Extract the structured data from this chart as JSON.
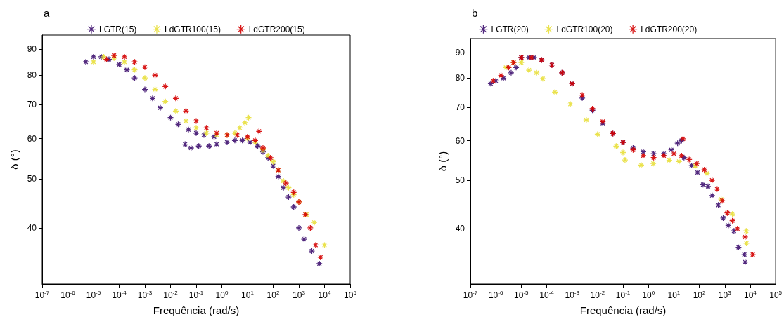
{
  "chart_data": [
    {
      "type": "scatter",
      "title": "a",
      "xlabel": "Frequência (rad/s)",
      "ylabel": "δ (°)",
      "log": "xy",
      "grid": false,
      "legend": "top",
      "marker": "cross",
      "xlim": [
        1e-07,
        100000.0
      ],
      "ylim": [
        31,
        96
      ],
      "xticks": [
        {
          "value": 1e-07,
          "label": "10$^{-7}$"
        },
        {
          "value": 1e-06,
          "label": "10$^{-6}$"
        },
        {
          "value": 1e-05,
          "label": "10$^{-5}$"
        },
        {
          "value": 0.0001,
          "label": "10$^{-4}$"
        },
        {
          "value": 0.001,
          "label": "10$^{-3}$"
        },
        {
          "value": 0.01,
          "label": "10$^{-2}$"
        },
        {
          "value": 0.1,
          "label": "10$^{-1}$"
        },
        {
          "value": 1,
          "label": "10$^{0}$"
        },
        {
          "value": 10,
          "label": "10$^{1}$"
        },
        {
          "value": 100,
          "label": "10$^{2}$"
        },
        {
          "value": 1000,
          "label": "10$^{3}$"
        },
        {
          "value": 10000,
          "label": "10$^{4}$"
        },
        {
          "value": 100000,
          "label": "10$^{5}$"
        }
      ],
      "yticks": [
        40,
        50,
        60,
        70,
        80,
        90
      ],
      "series": [
        {
          "name": "LGTR(15)",
          "color": "#3f1270",
          "x": [
            5e-06,
            1e-05,
            2e-05,
            4e-05,
            0.0001,
            0.0002,
            0.0004,
            0.001,
            0.002,
            0.004,
            0.01,
            0.02,
            0.05,
            0.1,
            0.2,
            0.5,
            0.037,
            0.063,
            0.126,
            0.316,
            0.63,
            1.6,
            3.2,
            6.3,
            12.6,
            25,
            40,
            63,
            100,
            158,
            251,
            398,
            631,
            1000,
            1600,
            3200,
            6300
          ],
          "values": [
            85,
            87,
            87,
            86,
            84,
            82,
            79,
            75,
            72,
            69,
            66,
            64,
            62.5,
            61.5,
            61,
            60.5,
            58.5,
            57.5,
            58,
            58,
            58.5,
            59,
            59.5,
            59.5,
            59,
            58,
            56.5,
            55,
            53,
            50.5,
            48,
            46,
            44,
            40,
            38,
            36,
            34
          ]
        },
        {
          "name": "LdGTR100(15)",
          "color": "#e8df3a",
          "x": [
            1e-05,
            2.5e-05,
            6.3e-05,
            0.00016,
            0.0004,
            0.001,
            0.0025,
            0.0063,
            0.016,
            0.04,
            0.1,
            0.25,
            0.63,
            1.6,
            3.2,
            5,
            7.9,
            11,
            10,
            20,
            40,
            63,
            100,
            158,
            251,
            398,
            631,
            1000,
            2000,
            4000,
            10000
          ],
          "values": [
            85,
            87,
            86.5,
            85,
            82,
            79,
            75,
            71,
            68,
            65,
            63,
            61.5,
            61,
            61,
            61.5,
            63,
            64.5,
            66,
            60,
            59,
            57,
            55.5,
            54,
            52,
            49.5,
            48,
            46.5,
            45,
            42.5,
            41,
            37
          ]
        },
        {
          "name": "LdGTR200(15)",
          "color": "#d40000",
          "x": [
            3.2e-05,
            6.3e-05,
            0.00016,
            0.0004,
            0.001,
            0.0025,
            0.0063,
            0.016,
            0.04,
            0.1,
            0.25,
            0.63,
            1.6,
            4,
            10,
            20,
            28,
            40,
            79,
            158,
            316,
            631,
            1000,
            1800,
            2800,
            4500,
            7000
          ],
          "values": [
            86,
            87.5,
            87,
            85,
            83,
            80,
            76,
            72,
            68,
            65,
            63,
            61.5,
            61,
            61,
            60.5,
            59.5,
            62,
            57.5,
            55,
            52,
            49,
            47,
            45,
            42.5,
            40,
            37,
            35
          ]
        }
      ]
    },
    {
      "type": "scatter",
      "title": "b",
      "xlabel": "Frequência (rad/s)",
      "ylabel": "δ (°)",
      "log": "xy",
      "grid": false,
      "legend": "top",
      "marker": "cross",
      "xlim": [
        1e-07,
        100000.0
      ],
      "ylim": [
        31,
        96
      ],
      "xticks": [
        {
          "value": 1e-07,
          "label": "10$^{-7}$"
        },
        {
          "value": 1e-06,
          "label": "10$^{-6}$"
        },
        {
          "value": 1e-05,
          "label": "10$^{-5}$"
        },
        {
          "value": 0.0001,
          "label": "10$^{-4}$"
        },
        {
          "value": 0.001,
          "label": "10$^{-3}$"
        },
        {
          "value": 0.01,
          "label": "10$^{-2}$"
        },
        {
          "value": 0.1,
          "label": "10$^{-1}$"
        },
        {
          "value": 1,
          "label": "10$^{0}$"
        },
        {
          "value": 10,
          "label": "10$^{1}$"
        },
        {
          "value": 100,
          "label": "10$^{2}$"
        },
        {
          "value": 1000,
          "label": "10$^{3}$"
        },
        {
          "value": 10000,
          "label": "10$^{4}$"
        },
        {
          "value": 100000,
          "label": "10$^{5}$"
        }
      ],
      "yticks": [
        40,
        50,
        60,
        70,
        80,
        90
      ],
      "series": [
        {
          "name": "LGTR(20)",
          "color": "#3f1270",
          "x": [
            6.3e-07,
            1e-06,
            2e-06,
            4e-06,
            6.3e-06,
            1e-05,
            2e-05,
            3.2e-05,
            6.3e-05,
            0.00016,
            0.0004,
            0.001,
            0.0025,
            0.0063,
            0.016,
            0.04,
            0.1,
            0.25,
            0.63,
            1.6,
            4,
            7.9,
            14,
            20,
            25,
            50,
            85,
            140,
            220,
            320,
            560,
            870,
            1380,
            2300,
            3500,
            5900,
            6300
          ],
          "values": [
            78,
            79,
            80,
            82,
            84,
            88,
            88,
            88,
            87,
            85,
            82,
            78,
            73,
            69,
            65,
            62,
            59.5,
            58,
            57,
            56.5,
            56.5,
            57.5,
            59.3,
            60,
            55.5,
            53.5,
            51.8,
            49,
            48.6,
            46.6,
            44.6,
            42,
            40.6,
            39.6,
            36.7,
            35.5,
            34.3
          ]
        },
        {
          "name": "LdGTR100(20)",
          "color": "#e8df3a",
          "x": [
            2.5e-06,
            5e-06,
            1e-05,
            2e-05,
            4e-05,
            7e-05,
            0.00021,
            0.00085,
            0.0036,
            0.01,
            0.054,
            0.12,
            0.1,
            0.52,
            1.55,
            6.6,
            16,
            69,
            200,
            720,
            2000,
            7000,
            7100
          ],
          "values": [
            84,
            86,
            86,
            83,
            82,
            79.8,
            75,
            71,
            66,
            61.8,
            58.5,
            54.9,
            56.8,
            53.6,
            54,
            54.8,
            54.5,
            53.4,
            51.6,
            45.8,
            42.8,
            39.6,
            37.4
          ]
        },
        {
          "name": "LdGTR200(20)",
          "color": "#d40000",
          "x": [
            7.9e-07,
            1.6e-06,
            3.2e-06,
            5e-06,
            1e-05,
            2.5e-05,
            6.3e-05,
            0.00016,
            0.0004,
            0.001,
            0.0025,
            0.0063,
            0.016,
            0.04,
            0.1,
            0.25,
            0.63,
            1.6,
            4,
            10,
            23,
            20,
            40,
            79,
            158,
            316,
            500,
            794,
            1260,
            2000,
            3160,
            6300,
            12600
          ],
          "values": [
            79,
            81,
            84,
            86,
            88,
            88,
            87,
            85,
            82,
            78,
            74,
            69.5,
            65.5,
            62,
            59.5,
            57.5,
            56,
            55.5,
            56,
            56.5,
            60.5,
            56,
            55,
            54,
            52.5,
            50,
            48,
            45.5,
            43,
            41.5,
            40,
            38.5,
            35.5
          ]
        }
      ]
    }
  ]
}
